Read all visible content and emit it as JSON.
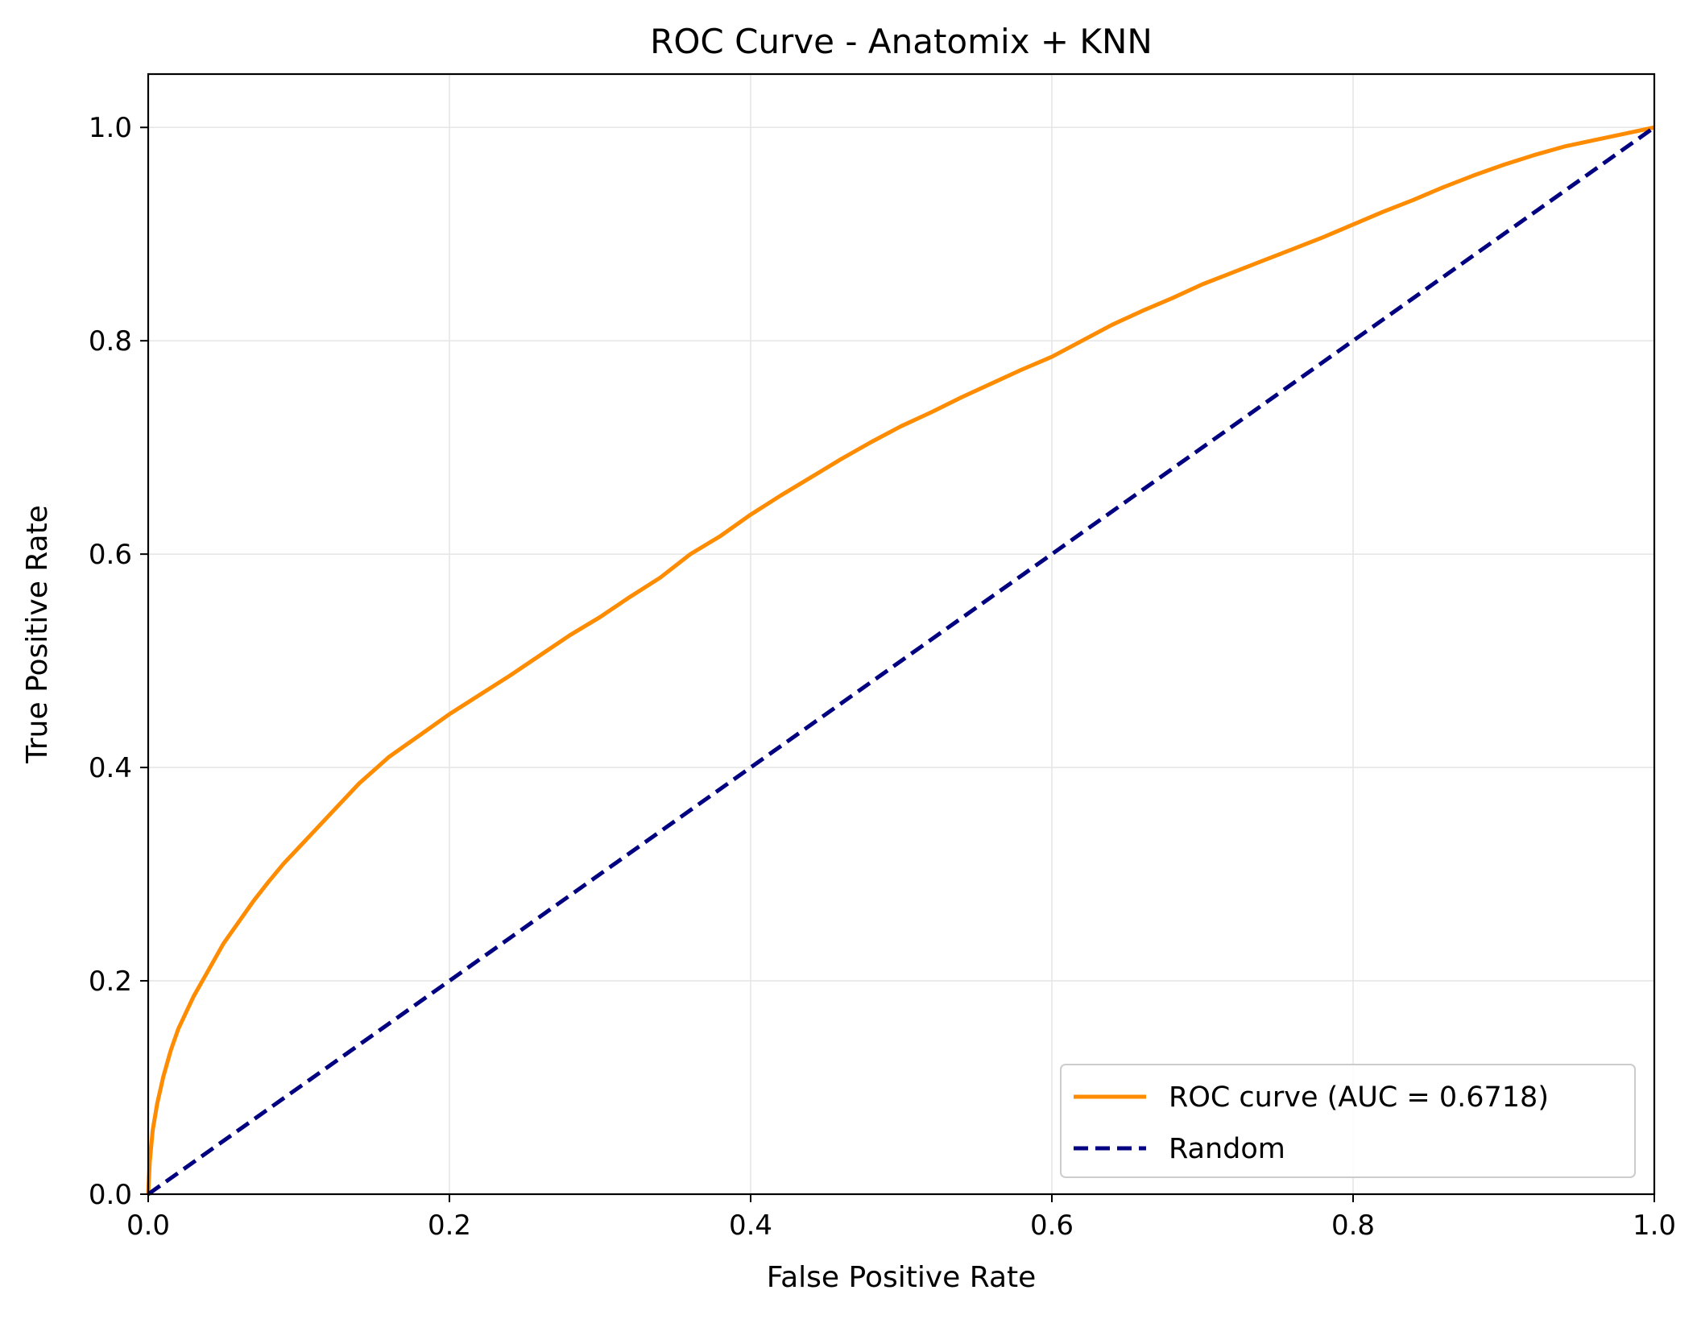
{
  "chart_data": {
    "type": "line",
    "title": "ROC Curve - Anatomix + KNN",
    "xlabel": "False Positive Rate",
    "ylabel": "True Positive Rate",
    "xlim": [
      0.0,
      1.0
    ],
    "ylim": [
      0.0,
      1.05
    ],
    "xticks": [
      "0.0",
      "0.2",
      "0.4",
      "0.6",
      "0.8",
      "1.0"
    ],
    "yticks": [
      "0.0",
      "0.2",
      "0.4",
      "0.6",
      "0.8",
      "1.0"
    ],
    "grid": true,
    "legend_position": "lower-right",
    "series": [
      {
        "name": "ROC curve (AUC = 0.6718)",
        "color": "#ff8c00",
        "style": "solid",
        "x": [
          0.0,
          0.001,
          0.003,
          0.006,
          0.01,
          0.015,
          0.02,
          0.03,
          0.04,
          0.05,
          0.06,
          0.07,
          0.08,
          0.09,
          0.1,
          0.12,
          0.14,
          0.16,
          0.18,
          0.2,
          0.22,
          0.24,
          0.26,
          0.28,
          0.3,
          0.32,
          0.34,
          0.36,
          0.38,
          0.4,
          0.42,
          0.44,
          0.46,
          0.48,
          0.5,
          0.52,
          0.54,
          0.56,
          0.58,
          0.6,
          0.62,
          0.64,
          0.66,
          0.68,
          0.7,
          0.72,
          0.74,
          0.76,
          0.78,
          0.8,
          0.82,
          0.84,
          0.86,
          0.88,
          0.9,
          0.92,
          0.94,
          0.96,
          0.98,
          1.0
        ],
        "y": [
          0.0,
          0.03,
          0.06,
          0.085,
          0.11,
          0.135,
          0.155,
          0.185,
          0.21,
          0.235,
          0.255,
          0.275,
          0.293,
          0.31,
          0.325,
          0.355,
          0.385,
          0.41,
          0.43,
          0.45,
          0.468,
          0.486,
          0.505,
          0.524,
          0.541,
          0.56,
          0.578,
          0.6,
          0.617,
          0.637,
          0.655,
          0.672,
          0.689,
          0.705,
          0.72,
          0.733,
          0.747,
          0.76,
          0.773,
          0.785,
          0.8,
          0.815,
          0.828,
          0.84,
          0.853,
          0.864,
          0.875,
          0.886,
          0.897,
          0.909,
          0.921,
          0.932,
          0.944,
          0.955,
          0.965,
          0.974,
          0.982,
          0.988,
          0.994,
          1.0
        ]
      },
      {
        "name": "Random",
        "color": "#000080",
        "style": "dashed",
        "x": [
          0.0,
          1.0
        ],
        "y": [
          0.0,
          1.0
        ]
      }
    ]
  }
}
